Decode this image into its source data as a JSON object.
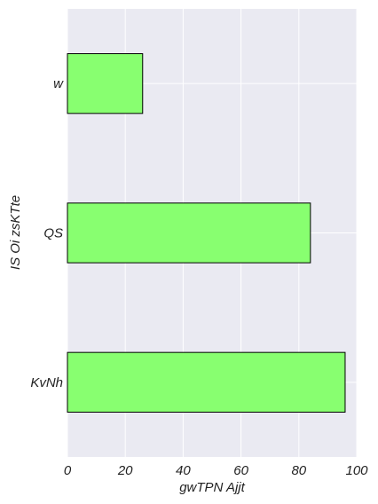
{
  "chart_data": {
    "type": "bar",
    "orientation": "horizontal",
    "categories": [
      "w",
      "QS",
      "KvNh"
    ],
    "values": [
      26,
      84,
      96
    ],
    "xlabel": "gwTPN Ajjt",
    "ylabel": "IS Oi  zsKTte",
    "xlim": [
      0,
      100
    ],
    "xticks": [
      0,
      20,
      40,
      60,
      80,
      100
    ],
    "grid": true,
    "colors": {
      "bar_fill": "#88ff70",
      "bar_edge": "#000000",
      "plot_background": "#eaeaf2",
      "grid": "#ffffff"
    }
  }
}
